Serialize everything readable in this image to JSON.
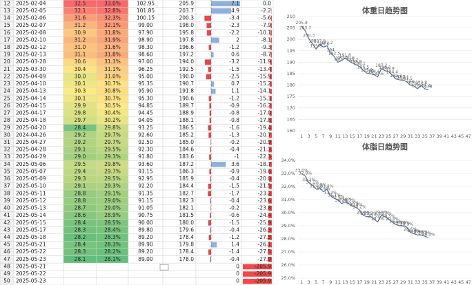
{
  "table": {
    "row_numbers": [
      12,
      13,
      14,
      15,
      16,
      17,
      18,
      19,
      20,
      21,
      22,
      23,
      24,
      25,
      26,
      27,
      28,
      29,
      30,
      31,
      32,
      33,
      34,
      35,
      36,
      37,
      38,
      39,
      40,
      41,
      42,
      43,
      44,
      45,
      46,
      47,
      48,
      49,
      50
    ],
    "rows": [
      [
        "2025-02-04",
        "32.5",
        "33.0%",
        "102.95",
        "205.9",
        "7.1",
        "0.0"
      ],
      [
        "2025-02-05",
        "32.1",
        "32.8%",
        "101.85",
        "203.7",
        "4.9",
        "-2.2"
      ],
      [
        "2025-02-06",
        "31.6",
        "32.3%",
        "100.15",
        "200.3",
        "-3.4",
        "-5.6"
      ],
      [
        "2025-02-07",
        "31.2",
        "32.1%",
        "99.00",
        "198.0",
        "-2.3",
        "-7.9"
      ],
      [
        "2025-02-08",
        "30.9",
        "31.8%",
        "97.90",
        "195.8",
        "-2.2",
        "-10.1"
      ],
      [
        "2025-02-10",
        "31.2",
        "31.9%",
        "98.90",
        "197.8",
        "2",
        "-8.1"
      ],
      [
        "2025-02-12",
        "31.0",
        "31.6%",
        "98.30",
        "196.6",
        "-1.2",
        "-9.3"
      ],
      [
        "2025-02-13",
        "31.1",
        "31.8%",
        "98.60",
        "197.2",
        "0.6",
        "-8.7"
      ],
      [
        "2025-03-28",
        "30.6",
        "31.3%",
        "97.00",
        "194.0",
        "-3.2",
        "-11.9"
      ],
      [
        "2025-03-30",
        "30.4",
        "31.1%",
        "96.25",
        "192.5",
        "-1.5",
        "-13.4"
      ],
      [
        "2025-04-09",
        "30.0",
        "31.0%",
        "95.00",
        "190.0",
        "-2.5",
        "-15.9"
      ],
      [
        "2025-04-10",
        "30.1",
        "30.7%",
        "95.35",
        "190.7",
        "0.7",
        "-15.2"
      ],
      [
        "2025-04-13",
        "30.3",
        "30.8%",
        "95.90",
        "191.8",
        "1.1",
        "-14.1"
      ],
      [
        "2025-04-14",
        "30.1",
        "30.7%",
        "95.30",
        "190.6",
        "-1.2",
        "-15.3"
      ],
      [
        "2025-04-15",
        "29.9",
        "30.5%",
        "94.85",
        "189.7",
        "-0.9",
        "-16.2"
      ],
      [
        "2025-04-17",
        "29.8",
        "30.4%",
        "94.45",
        "188.9",
        "-0.8",
        "-17.0"
      ],
      [
        "2025-04-18",
        "29.7",
        "30.2%",
        "94.05",
        "188.1",
        "-0.8",
        "-17.8"
      ],
      [
        "2025-04-20",
        "28.4",
        "29.8%",
        "93.25",
        "186.5",
        "-1.6",
        "-19.4"
      ],
      [
        "2024-04-26",
        "29.2",
        "29.7%",
        "92.60",
        "185.2",
        "-1.3",
        "-20.7"
      ],
      [
        "2025-04-27",
        "29.2",
        "29.7%",
        "92.50",
        "185.0",
        "-0.2",
        "-20.9"
      ],
      [
        "2025-04-28",
        "29.1",
        "29.5%",
        "92.30",
        "184.6",
        "-0.4",
        "-21.3"
      ],
      [
        "2025-04-29",
        "29.0",
        "29.3%",
        "91.80",
        "183.6",
        "-1",
        "-22.3"
      ],
      [
        "2025-05-06",
        "29.5",
        "29.8%",
        "93.60",
        "187.2",
        "3.6",
        "-18.7"
      ],
      [
        "2025-05-07",
        "29.4",
        "29.7%",
        "93.15",
        "186.3",
        "-0.9",
        "-19.6"
      ],
      [
        "2025-05-09",
        "29.3",
        "29.5%",
        "92.95",
        "185.9",
        "-0.4",
        "-20.0"
      ],
      [
        "2025-05-10",
        "29.1",
        "29.3%",
        "92.20",
        "184.4",
        "-1.5",
        "-21.5"
      ],
      [
        "2025-05-11",
        "28.8",
        "29.1%",
        "91.35",
        "182.7",
        "-1.7",
        "-23.2"
      ],
      [
        "2025-05-12",
        "28.8",
        "29.0%",
        "91.15",
        "182.3",
        "-0.4",
        "-23.6"
      ],
      [
        "2025-05-13",
        "28.7",
        "29.0%",
        "91.05",
        "182.1",
        "-0.2",
        "-23.8"
      ],
      [
        "2025-05-14",
        "28.6",
        "28.9%",
        "90.75",
        "181.5",
        "-0.6",
        "-24.4"
      ],
      [
        "2025-05-15",
        "28.4",
        "28.5%",
        "90.00",
        "180.0",
        "-1.5",
        "-25.9"
      ],
      [
        "2025-05-17",
        "28.3",
        "28.4%",
        "89.80",
        "179.6",
        "-0.4",
        "-26.3"
      ],
      [
        "2025-05-18",
        "28.2",
        "28.3%",
        "89.20",
        "178.4",
        "-1.2",
        "-27.5"
      ],
      [
        "2025-05-21",
        "28.4",
        "28.3%",
        "89.90",
        "179.8",
        "1.4",
        "-26.1"
      ],
      [
        "2025-05-22",
        "28.3",
        "28.2%",
        "89.20",
        "178.4",
        "-1.4",
        "-27.5"
      ],
      [
        "2025-05-23",
        "28.1",
        "28.1%",
        "89.00",
        "178.0",
        "-0.4",
        "-27.9"
      ]
    ],
    "extra_rows": [
      {
        "date": "2025-05-21",
        "change": "0",
        "total": "-205.9"
      },
      {
        "date": "2025-05-22",
        "change": "0",
        "total": "-205.9"
      },
      {
        "date": "2025-05-23",
        "change": "0",
        "total": "-205.9"
      }
    ]
  },
  "chart_data": [
    {
      "type": "line",
      "title": "体重日趋势图",
      "color": "#4f6f99",
      "x": [
        1,
        2,
        3,
        4,
        5,
        6,
        7,
        8,
        9,
        10,
        11,
        12,
        13,
        14,
        15,
        16,
        17,
        18,
        19,
        20,
        21,
        22,
        23,
        24,
        25,
        26,
        27,
        28,
        29,
        30,
        31,
        32,
        33,
        34,
        35,
        36
      ],
      "values": [
        205.9,
        203.7,
        200.3,
        198.0,
        195.8,
        197.8,
        196.6,
        197.2,
        194.0,
        192.5,
        190.0,
        190.7,
        191.8,
        190.6,
        189.7,
        188.9,
        188.1,
        186.5,
        185.2,
        185.0,
        184.6,
        183.6,
        187.2,
        186.3,
        185.9,
        184.4,
        182.7,
        182.3,
        182.1,
        181.5,
        180.0,
        179.6,
        178.4,
        179.8,
        178.4,
        178.0
      ],
      "xlim": [
        0,
        48
      ],
      "xticks": [
        1,
        3,
        5,
        7,
        9,
        11,
        13,
        15,
        17,
        19,
        21,
        23,
        25,
        27,
        29,
        31,
        33,
        35,
        37,
        39,
        41,
        43,
        45,
        47
      ],
      "ylim": [
        160,
        210
      ],
      "yticks": [
        160,
        165,
        170,
        175,
        180,
        185,
        190,
        195,
        200,
        205,
        210
      ],
      "grid": true
    },
    {
      "type": "line",
      "title": "体脂日趋势图",
      "color": "#4f6f99",
      "x": [
        1,
        2,
        3,
        4,
        5,
        6,
        7,
        8,
        9,
        10,
        11,
        12,
        13,
        14,
        15,
        16,
        17,
        18,
        19,
        20,
        21,
        22,
        23,
        24,
        25,
        26,
        27,
        28,
        29,
        30,
        31,
        32,
        33,
        34,
        35,
        36
      ],
      "values": [
        33.0,
        32.8,
        32.3,
        32.1,
        31.8,
        31.9,
        31.6,
        31.8,
        31.3,
        31.1,
        31.0,
        30.7,
        30.8,
        30.7,
        30.5,
        30.4,
        30.2,
        29.8,
        29.7,
        29.7,
        29.5,
        29.3,
        29.8,
        29.7,
        29.5,
        29.3,
        29.1,
        29.0,
        29.0,
        28.9,
        28.5,
        28.4,
        28.3,
        28.3,
        28.2,
        28.1
      ],
      "value_labels": [
        "33.0%",
        "32.8%",
        "32.3%",
        "32.1%",
        "31.8%",
        "31.9%",
        "31.6%",
        "31.8%",
        "31.3%",
        "31.1%",
        "31.0%",
        "30.7%",
        "30.8%",
        "30.7%",
        "30.5%",
        "30.4%",
        "30.2%",
        "29.8%",
        "29.7%",
        "29.7%",
        "29.5%",
        "29.3%",
        "29.8%",
        "29.7%",
        "29.5%",
        "29.3%",
        "29.1%",
        "29.0%",
        "29.0%",
        "28.9%",
        "28.5%",
        "28.4%",
        "28.3%",
        "28.3%",
        "28.2%",
        "28.1%"
      ],
      "xlim": [
        0,
        48
      ],
      "xticks": [
        1,
        3,
        5,
        7,
        9,
        11,
        13,
        15,
        17,
        19,
        21,
        23,
        25,
        27,
        29,
        31,
        33,
        35,
        37,
        39,
        41,
        43,
        45,
        47
      ],
      "ylim": [
        25,
        34
      ],
      "yticks": [
        {
          "value": 25,
          "label": "25.0%"
        },
        {
          "value": 26,
          "label": "26.0%"
        },
        {
          "value": 27,
          "label": "27.0%"
        },
        {
          "value": 28,
          "label": "28.0%"
        },
        {
          "value": 29,
          "label": "29.0%"
        },
        {
          "value": 30,
          "label": "30.0%"
        },
        {
          "value": 31,
          "label": "31.0%"
        },
        {
          "value": 32,
          "label": "32.0%"
        },
        {
          "value": 33,
          "label": "33.0%"
        },
        {
          "value": 34,
          "label": "34.0%"
        }
      ],
      "grid": true
    }
  ]
}
